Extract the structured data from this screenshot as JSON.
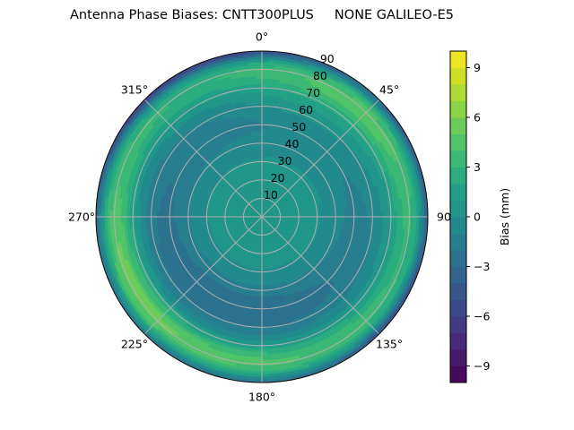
{
  "figure": {
    "title": "Antenna Phase Biases: CNTT300PLUS     NONE GALILEO-E5"
  },
  "chart_data": {
    "type": "heatmap",
    "subtype": "polar_filled_contour",
    "title": "Antenna Phase Biases: CNTT300PLUS     NONE GALILEO-E5",
    "antenna": "CNTT300PLUS",
    "radome": "NONE",
    "signal": "GALILEO-E5",
    "azimuth_ticks": [
      {
        "deg": 0,
        "label": "0°"
      },
      {
        "deg": 45,
        "label": "45°"
      },
      {
        "deg": 90,
        "label": "90"
      },
      {
        "deg": 135,
        "label": "135°"
      },
      {
        "deg": 180,
        "label": "180°"
      },
      {
        "deg": 225,
        "label": "225°"
      },
      {
        "deg": 270,
        "label": "270°"
      },
      {
        "deg": 315,
        "label": "315°"
      }
    ],
    "zenith_ticks": [
      "10",
      "20",
      "30",
      "40",
      "50",
      "60",
      "70",
      "80",
      "90"
    ],
    "zenith_range": [
      0,
      90
    ],
    "azimuth_direction": "clockwise, 0° at top",
    "grid": true,
    "colorbar": {
      "label": "Bias (mm)",
      "colormap": "viridis",
      "range": [
        -10,
        10
      ],
      "levels": 20,
      "ticks": [
        {
          "v": 9,
          "label": "9"
        },
        {
          "v": 6,
          "label": "6"
        },
        {
          "v": 3,
          "label": "3"
        },
        {
          "v": 0,
          "label": "0"
        },
        {
          "v": -3,
          "label": "−3"
        },
        {
          "v": -6,
          "label": "−6"
        },
        {
          "v": -9,
          "label": "−9"
        }
      ]
    },
    "field_description": {
      "center_value_mm": 0,
      "inner_negative_ring": {
        "zenith_deg": [
          40,
          65
        ],
        "strongest_azimuth_deg": [
          150,
          240
        ],
        "min_mm": -3
      },
      "outer_positive_ring": {
        "zenith_deg": [
          72,
          85
        ],
        "strongest_azimuth_deg": [
          225,
          260
        ],
        "max_mm": 5,
        "secondary_max_azimuth_deg": 45
      },
      "edge_negative": {
        "zenith_deg": [
          85,
          90
        ],
        "azimuth_deg": [
          [
            300,
            360
          ],
          [
            110,
            150
          ]
        ],
        "min_mm": -7
      }
    },
    "sampled_values": [
      {
        "az": 0,
        "zen": 0,
        "bias": 0
      },
      {
        "az": 0,
        "zen": 50,
        "bias": 0
      },
      {
        "az": 0,
        "zen": 80,
        "bias": -1
      },
      {
        "az": 0,
        "zen": 89,
        "bias": -5
      },
      {
        "az": 45,
        "zen": 50,
        "bias": 2
      },
      {
        "az": 45,
        "zen": 70,
        "bias": 4
      },
      {
        "az": 45,
        "zen": 89,
        "bias": -3
      },
      {
        "az": 90,
        "zen": 50,
        "bias": 0
      },
      {
        "az": 90,
        "zen": 75,
        "bias": 3
      },
      {
        "az": 90,
        "zen": 89,
        "bias": -2
      },
      {
        "az": 135,
        "zen": 50,
        "bias": -1
      },
      {
        "az": 135,
        "zen": 75,
        "bias": 3
      },
      {
        "az": 135,
        "zen": 89,
        "bias": -5
      },
      {
        "az": 180,
        "zen": 45,
        "bias": -3
      },
      {
        "az": 180,
        "zen": 80,
        "bias": 4
      },
      {
        "az": 180,
        "zen": 89,
        "bias": 1
      },
      {
        "az": 225,
        "zen": 50,
        "bias": -3
      },
      {
        "az": 225,
        "zen": 80,
        "bias": 5
      },
      {
        "az": 270,
        "zen": 55,
        "bias": -2
      },
      {
        "az": 270,
        "zen": 82,
        "bias": 5
      },
      {
        "az": 315,
        "zen": 55,
        "bias": -1
      },
      {
        "az": 315,
        "zen": 89,
        "bias": -7
      }
    ]
  }
}
